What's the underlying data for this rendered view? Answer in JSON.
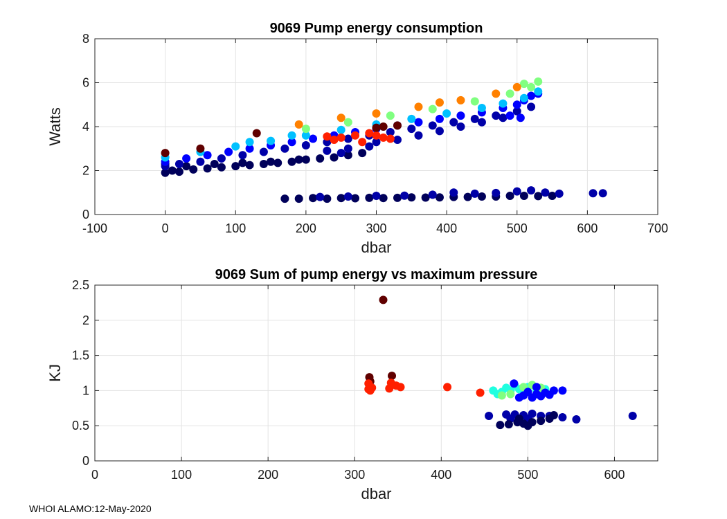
{
  "footer": "WHOI ALAMO:12-May-2020",
  "chart_data": [
    {
      "type": "scatter",
      "title": "9069 Pump energy consumption",
      "xlabel": "dbar",
      "ylabel": "Watts",
      "xlim": [
        -100,
        700
      ],
      "ylim": [
        0,
        8
      ],
      "xticks": [
        -100,
        0,
        100,
        200,
        300,
        400,
        500,
        600,
        700
      ],
      "yticks": [
        0,
        2,
        4,
        6,
        8
      ],
      "grid": true,
      "colormap": [
        "#00005a",
        "#0000a8",
        "#0000ff",
        "#2060ff",
        "#00c0ff",
        "#20ffe0",
        "#80ff80",
        "#ffd000",
        "#ff8000",
        "#ff2000",
        "#600000"
      ],
      "series": [
        {
          "name": "main-band-dark",
          "colorIndex": 0,
          "points": [
            [
              0,
              1.9
            ],
            [
              10,
              2.0
            ],
            [
              20,
              1.95
            ],
            [
              40,
              2.05
            ],
            [
              60,
              2.1
            ],
            [
              80,
              2.15
            ],
            [
              100,
              2.2
            ],
            [
              120,
              2.25
            ],
            [
              140,
              2.3
            ],
            [
              160,
              2.35
            ],
            [
              180,
              2.4
            ],
            [
              200,
              2.5
            ],
            [
              220,
              2.55
            ],
            [
              240,
              2.6
            ],
            [
              260,
              2.7
            ],
            [
              280,
              2.8
            ],
            [
              0,
              2.3
            ],
            [
              30,
              2.2
            ],
            [
              70,
              2.3
            ],
            [
              110,
              2.35
            ],
            [
              150,
              2.4
            ],
            [
              190,
              2.5
            ]
          ]
        },
        {
          "name": "main-band-blue",
          "colorIndex": 1,
          "points": [
            [
              0,
              2.2
            ],
            [
              20,
              2.3
            ],
            [
              50,
              2.4
            ],
            [
              80,
              2.55
            ],
            [
              110,
              2.7
            ],
            [
              140,
              2.85
            ],
            [
              170,
              3.0
            ],
            [
              200,
              3.15
            ],
            [
              230,
              3.3
            ],
            [
              260,
              3.45
            ],
            [
              290,
              3.6
            ],
            [
              320,
              3.75
            ],
            [
              350,
              3.9
            ],
            [
              380,
              4.05
            ],
            [
              410,
              4.2
            ],
            [
              440,
              4.35
            ],
            [
              470,
              4.5
            ],
            [
              500,
              4.7
            ],
            [
              300,
              3.3
            ],
            [
              330,
              3.4
            ],
            [
              360,
              3.6
            ],
            [
              390,
              3.8
            ],
            [
              420,
              4.0
            ],
            [
              450,
              4.2
            ],
            [
              480,
              4.4
            ],
            [
              520,
              4.9
            ],
            [
              230,
              2.9
            ],
            [
              260,
              3.0
            ],
            [
              290,
              3.1
            ],
            [
              250,
              2.8
            ]
          ]
        },
        {
          "name": "main-band-bright",
          "colorIndex": 2,
          "points": [
            [
              0,
              2.4
            ],
            [
              30,
              2.55
            ],
            [
              60,
              2.7
            ],
            [
              90,
              2.85
            ],
            [
              120,
              3.0
            ],
            [
              150,
              3.15
            ],
            [
              180,
              3.3
            ],
            [
              210,
              3.45
            ],
            [
              240,
              3.6
            ],
            [
              270,
              3.75
            ],
            [
              300,
              3.9
            ],
            [
              330,
              4.05
            ],
            [
              360,
              4.2
            ],
            [
              390,
              4.35
            ],
            [
              420,
              4.5
            ],
            [
              450,
              4.65
            ],
            [
              480,
              4.85
            ],
            [
              500,
              5.0
            ],
            [
              510,
              5.2
            ],
            [
              520,
              5.4
            ],
            [
              490,
              4.5
            ],
            [
              505,
              4.4
            ],
            [
              530,
              5.5
            ]
          ]
        },
        {
          "name": "main-band-cyan",
          "colorIndex": 4,
          "points": [
            [
              0,
              2.6
            ],
            [
              50,
              2.85
            ],
            [
              100,
              3.1
            ],
            [
              150,
              3.35
            ],
            [
              200,
              3.6
            ],
            [
              250,
              3.85
            ],
            [
              300,
              4.1
            ],
            [
              350,
              4.35
            ],
            [
              400,
              4.6
            ],
            [
              450,
              4.85
            ],
            [
              480,
              5.05
            ],
            [
              510,
              5.3
            ],
            [
              530,
              5.6
            ],
            [
              120,
              3.3
            ],
            [
              180,
              3.6
            ]
          ]
        },
        {
          "name": "main-band-green",
          "colorIndex": 6,
          "points": [
            [
              200,
              3.9
            ],
            [
              260,
              4.2
            ],
            [
              320,
              4.5
            ],
            [
              380,
              4.8
            ],
            [
              440,
              5.15
            ],
            [
              490,
              5.5
            ],
            [
              520,
              5.8
            ],
            [
              530,
              6.05
            ],
            [
              510,
              5.95
            ]
          ]
        },
        {
          "name": "main-band-orange",
          "colorIndex": 8,
          "points": [
            [
              190,
              4.1
            ],
            [
              250,
              4.4
            ],
            [
              300,
              4.6
            ],
            [
              360,
              4.9
            ],
            [
              420,
              5.2
            ],
            [
              470,
              5.5
            ],
            [
              500,
              5.8
            ],
            [
              390,
              5.1
            ]
          ]
        },
        {
          "name": "main-band-red",
          "colorIndex": 9,
          "points": [
            [
              230,
              3.55
            ],
            [
              250,
              3.5
            ],
            [
              270,
              3.6
            ],
            [
              290,
              3.7
            ],
            [
              300,
              3.6
            ],
            [
              310,
              3.5
            ],
            [
              320,
              3.45
            ],
            [
              280,
              3.3
            ],
            [
              240,
              3.4
            ]
          ]
        },
        {
          "name": "main-band-darkred",
          "colorIndex": 10,
          "points": [
            [
              0,
              2.8
            ],
            [
              50,
              3.0
            ],
            [
              130,
              3.7
            ],
            [
              300,
              3.95
            ],
            [
              330,
              4.05
            ],
            [
              310,
              4.0
            ]
          ]
        },
        {
          "name": "lower-band",
          "colorIndex": 0,
          "points": [
            [
              170,
              0.72
            ],
            [
              190,
              0.72
            ],
            [
              210,
              0.75
            ],
            [
              230,
              0.72
            ],
            [
              250,
              0.75
            ],
            [
              270,
              0.74
            ],
            [
              290,
              0.76
            ],
            [
              310,
              0.75
            ],
            [
              330,
              0.76
            ],
            [
              350,
              0.78
            ],
            [
              370,
              0.77
            ],
            [
              390,
              0.78
            ],
            [
              410,
              0.8
            ],
            [
              430,
              0.8
            ],
            [
              450,
              0.82
            ],
            [
              470,
              0.82
            ],
            [
              490,
              0.85
            ],
            [
              510,
              0.85
            ],
            [
              530,
              0.84
            ],
            [
              550,
              0.85
            ]
          ]
        },
        {
          "name": "lower-band-blue",
          "colorIndex": 1,
          "points": [
            [
              220,
              0.8
            ],
            [
              260,
              0.82
            ],
            [
              300,
              0.85
            ],
            [
              340,
              0.86
            ],
            [
              380,
              0.9
            ],
            [
              410,
              1.0
            ],
            [
              440,
              0.95
            ],
            [
              470,
              0.98
            ],
            [
              500,
              1.05
            ],
            [
              520,
              1.1
            ],
            [
              540,
              1.0
            ],
            [
              560,
              0.95
            ],
            [
              608,
              0.97
            ],
            [
              622,
              0.97
            ]
          ]
        }
      ]
    },
    {
      "type": "scatter",
      "title": "9069 Sum of pump energy vs maximum pressure",
      "xlabel": "dbar",
      "ylabel": "KJ",
      "xlim": [
        0,
        650
      ],
      "ylim": [
        0,
        2.5
      ],
      "xticks": [
        0,
        100,
        200,
        300,
        400,
        500,
        600
      ],
      "yticks": [
        0,
        0.5,
        1,
        1.5,
        2,
        2.5
      ],
      "grid": true,
      "colormap": [
        "#00005a",
        "#0000a8",
        "#0000ff",
        "#2060ff",
        "#00c0ff",
        "#20ffe0",
        "#80ff80",
        "#ffd000",
        "#ff8000",
        "#ff2000",
        "#600000"
      ],
      "series": [
        {
          "name": "outlier",
          "colorIndex": 10,
          "points": [
            [
              333,
              2.29
            ]
          ]
        },
        {
          "name": "darkred-group",
          "colorIndex": 10,
          "points": [
            [
              317,
              1.19
            ],
            [
              343,
              1.21
            ],
            [
              318,
              1.13
            ]
          ]
        },
        {
          "name": "red-group",
          "colorIndex": 9,
          "points": [
            [
              316,
              1.02
            ],
            [
              317,
              1.07
            ],
            [
              318,
              1.0
            ],
            [
              316,
              1.1
            ],
            [
              320,
              1.04
            ],
            [
              340,
              1.03
            ],
            [
              342,
              1.11
            ],
            [
              348,
              1.07
            ],
            [
              353,
              1.05
            ],
            [
              407,
              1.05
            ],
            [
              445,
              0.97
            ]
          ]
        },
        {
          "name": "cyan-group",
          "colorIndex": 5,
          "points": [
            [
              460,
              1.0
            ],
            [
              470,
              0.98
            ],
            [
              480,
              1.0
            ],
            [
              490,
              1.02
            ],
            [
              500,
              1.05
            ],
            [
              510,
              1.0
            ],
            [
              465,
              0.95
            ],
            [
              475,
              1.04
            ],
            [
              495,
              0.97
            ],
            [
              520,
              1.02
            ],
            [
              485,
              1.07
            ]
          ]
        },
        {
          "name": "green-group",
          "colorIndex": 6,
          "points": [
            [
              470,
              0.93
            ],
            [
              480,
              0.95
            ],
            [
              495,
              1.05
            ],
            [
              505,
              1.08
            ],
            [
              515,
              1.04
            ]
          ]
        },
        {
          "name": "blue-group",
          "colorIndex": 2,
          "points": [
            [
              484,
              1.1
            ],
            [
              500,
              0.98
            ],
            [
              510,
              0.95
            ],
            [
              520,
              0.97
            ],
            [
              530,
              1.0
            ],
            [
              540,
              1.0
            ],
            [
              505,
              0.9
            ],
            [
              495,
              0.93
            ],
            [
              515,
              0.92
            ],
            [
              525,
              0.94
            ],
            [
              490,
              0.9
            ],
            [
              510,
              1.05
            ]
          ]
        },
        {
          "name": "navy-group",
          "colorIndex": 1,
          "points": [
            [
              455,
              0.64
            ],
            [
              475,
              0.66
            ],
            [
              485,
              0.66
            ],
            [
              495,
              0.65
            ],
            [
              505,
              0.67
            ],
            [
              515,
              0.64
            ],
            [
              525,
              0.64
            ],
            [
              540,
              0.62
            ],
            [
              556,
              0.59
            ],
            [
              621,
              0.64
            ],
            [
              500,
              0.6
            ],
            [
              480,
              0.6
            ]
          ]
        },
        {
          "name": "dark-group",
          "colorIndex": 0,
          "points": [
            [
              468,
              0.51
            ],
            [
              478,
              0.52
            ],
            [
              488,
              0.55
            ],
            [
              495,
              0.53
            ],
            [
              505,
              0.55
            ],
            [
              515,
              0.57
            ],
            [
              525,
              0.6
            ],
            [
              530,
              0.65
            ],
            [
              500,
              0.5
            ],
            [
              490,
              0.6
            ]
          ]
        }
      ]
    }
  ]
}
